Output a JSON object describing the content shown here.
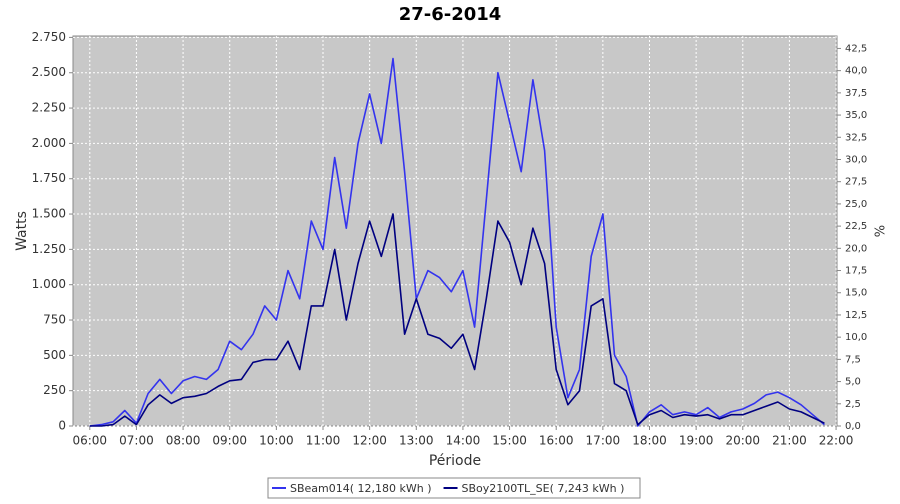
{
  "chart_data": {
    "type": "line",
    "title": "27-6-2014",
    "x_label": "Période",
    "y_label": "Watts",
    "y2_label": "%",
    "x": [
      6,
      6.25,
      6.5,
      6.75,
      7,
      7.25,
      7.5,
      7.75,
      8,
      8.25,
      8.5,
      8.75,
      9,
      9.25,
      9.5,
      9.75,
      10,
      10.25,
      10.5,
      10.75,
      11,
      11.25,
      11.5,
      11.75,
      12,
      12.25,
      12.5,
      12.75,
      13,
      13.25,
      13.5,
      13.75,
      14,
      14.25,
      14.5,
      14.75,
      15,
      15.25,
      15.5,
      15.75,
      16,
      16.25,
      16.5,
      16.75,
      17,
      17.25,
      17.5,
      17.75,
      18,
      18.25,
      18.5,
      18.75,
      19,
      19.25,
      19.5,
      19.75,
      20,
      20.25,
      20.5,
      20.75,
      21,
      21.25,
      21.5,
      21.75,
      22
    ],
    "series": [
      {
        "name": "SBeam014( 12,180 kWh )",
        "color": "#3333ee",
        "values": [
          0,
          10,
          30,
          110,
          20,
          230,
          330,
          230,
          320,
          350,
          330,
          400,
          600,
          540,
          650,
          850,
          750,
          1100,
          900,
          1450,
          1250,
          1900,
          1400,
          2000,
          2350,
          2000,
          2600,
          1800,
          900,
          1100,
          1050,
          950,
          1100,
          700,
          1600,
          2500,
          2150,
          1800,
          2450,
          1950,
          700,
          200,
          400,
          1200,
          1500,
          500,
          350,
          0,
          100,
          150,
          80,
          100,
          80,
          130,
          60,
          100,
          120,
          160,
          220,
          240,
          200,
          150,
          80,
          10,
          null
        ]
      },
      {
        "name": "SBoy2100TL_SE( 7,243 kWh )",
        "color": "#000080",
        "values": [
          0,
          0,
          10,
          70,
          10,
          150,
          220,
          160,
          200,
          210,
          230,
          280,
          320,
          330,
          450,
          470,
          470,
          600,
          400,
          850,
          850,
          1250,
          750,
          1150,
          1450,
          1200,
          1500,
          650,
          900,
          650,
          620,
          550,
          650,
          400,
          900,
          1450,
          1300,
          1000,
          1400,
          1150,
          400,
          150,
          250,
          850,
          900,
          300,
          250,
          10,
          80,
          110,
          60,
          80,
          70,
          80,
          50,
          80,
          80,
          110,
          140,
          170,
          120,
          100,
          60,
          20,
          null
        ]
      }
    ],
    "xlim": [
      5.64,
      22.02
    ],
    "xticks": [
      {
        "value": 6,
        "label": "06:00"
      },
      {
        "value": 7,
        "label": "07:00"
      },
      {
        "value": 8,
        "label": "08:00"
      },
      {
        "value": 9,
        "label": "09:00"
      },
      {
        "value": 10,
        "label": "10:00"
      },
      {
        "value": 11,
        "label": "11:00"
      },
      {
        "value": 12,
        "label": "12:00"
      },
      {
        "value": 13,
        "label": "13:00"
      },
      {
        "value": 14,
        "label": "14:00"
      },
      {
        "value": 15,
        "label": "15:00"
      },
      {
        "value": 16,
        "label": "16:00"
      },
      {
        "value": 17,
        "label": "17:00"
      },
      {
        "value": 18,
        "label": "18:00"
      },
      {
        "value": 19,
        "label": "19:00"
      },
      {
        "value": 20,
        "label": "20:00"
      },
      {
        "value": 21,
        "label": "21:00"
      },
      {
        "value": 22,
        "label": "22:00"
      }
    ],
    "ylim": [
      0,
      2760
    ],
    "yticks": [
      0,
      250,
      500,
      750,
      {
        "value": 1000,
        "label": "1.000"
      },
      {
        "value": 1250,
        "label": "1.250"
      },
      {
        "value": 1500,
        "label": "1.500"
      },
      {
        "value": 1750,
        "label": "1.750"
      },
      {
        "value": 2000,
        "label": "2.000"
      },
      {
        "value": 2250,
        "label": "2.250"
      },
      {
        "value": 2500,
        "label": "2.500"
      },
      {
        "value": 2750,
        "label": "2.750"
      }
    ],
    "y2lim": [
      0,
      43.9
    ],
    "y2ticks": [
      {
        "value": 0,
        "label": "0,0"
      },
      {
        "value": 2.5,
        "label": "2,5"
      },
      {
        "value": 5,
        "label": "5,0"
      },
      {
        "value": 7.5,
        "label": "7,5"
      },
      {
        "value": 10,
        "label": "10,0"
      },
      {
        "value": 12.5,
        "label": "12,5"
      },
      {
        "value": 15,
        "label": "15,0"
      },
      {
        "value": 17.5,
        "label": "17,5"
      },
      {
        "value": 20,
        "label": "20,0"
      },
      {
        "value": 22.5,
        "label": "22,5"
      },
      {
        "value": 25,
        "label": "25,0"
      },
      {
        "value": 27.5,
        "label": "27,5"
      },
      {
        "value": 30,
        "label": "30,0"
      },
      {
        "value": 32.5,
        "label": "32,5"
      },
      {
        "value": 35,
        "label": "35,0"
      },
      {
        "value": 37.5,
        "label": "37,5"
      },
      {
        "value": 40,
        "label": "40,0"
      },
      {
        "value": 42.5,
        "label": "42,5"
      }
    ],
    "grid": true
  }
}
